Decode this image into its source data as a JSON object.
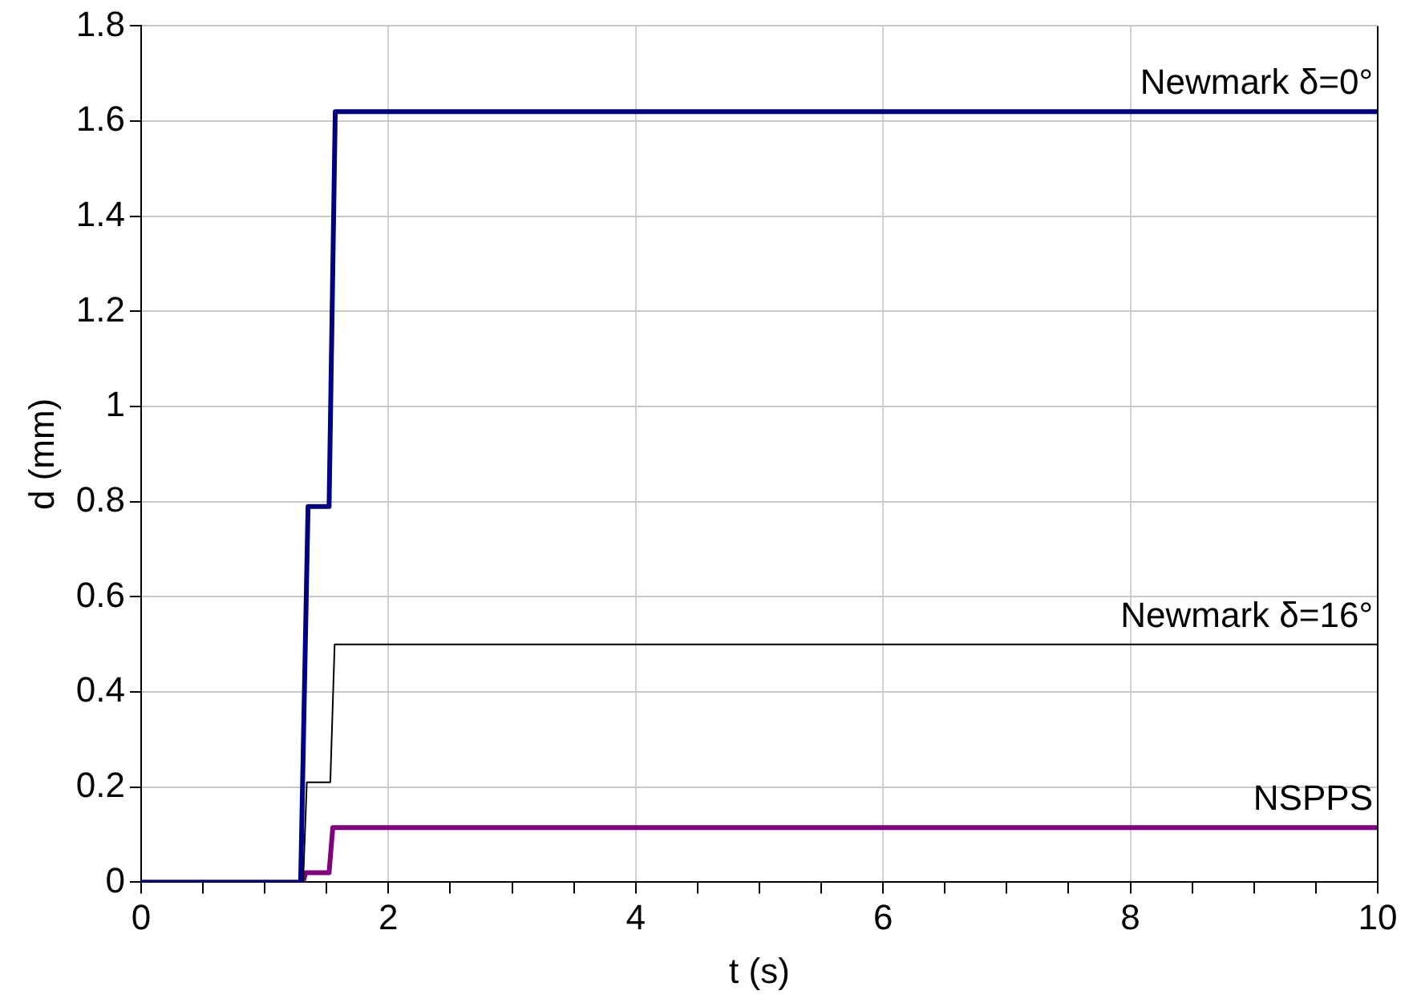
{
  "chart_data": {
    "type": "line",
    "xlabel": "t (s)",
    "ylabel": "d (mm)",
    "xlim": [
      0,
      10
    ],
    "ylim": [
      0,
      1.8
    ],
    "xticks": [
      0,
      {
        "value": 0.5,
        "label": null
      },
      {
        "value": 1,
        "label": null
      },
      {
        "value": 1.5,
        "label": null
      },
      2,
      {
        "value": 2.5,
        "label": null
      },
      {
        "value": 3,
        "label": null
      },
      {
        "value": 3.5,
        "label": null
      },
      4,
      {
        "value": 4.5,
        "label": null
      },
      {
        "value": 5,
        "label": null
      },
      {
        "value": 5.5,
        "label": null
      },
      6,
      {
        "value": 6.5,
        "label": null
      },
      {
        "value": 7,
        "label": null
      },
      {
        "value": 7.5,
        "label": null
      },
      8,
      {
        "value": 8.5,
        "label": null
      },
      {
        "value": 9,
        "label": null
      },
      {
        "value": 9.5,
        "label": null
      },
      10
    ],
    "yticks": [
      0,
      0.2,
      0.4,
      0.6,
      0.8,
      1,
      1.2,
      1.4,
      1.6,
      1.8
    ],
    "grid": true,
    "legend": false,
    "marker": "none",
    "line_style": "solid",
    "series": [
      {
        "name": "Newmark δ=0°",
        "color": "#000080",
        "x": [
          0,
          1.29,
          1.35,
          1.52,
          1.57,
          10
        ],
        "values": [
          0,
          0,
          0.79,
          0.79,
          1.62,
          1.62
        ]
      },
      {
        "name": "Newmark δ=16°",
        "color": "#000000",
        "x": [
          0,
          1.31,
          1.34,
          1.53,
          1.565,
          10
        ],
        "values": [
          0,
          0,
          0.21,
          0.21,
          0.5,
          0.5
        ]
      },
      {
        "name": "NSPPS",
        "color": "#800080",
        "x": [
          0,
          1.31,
          1.33,
          1.52,
          1.55,
          10
        ],
        "values": [
          0,
          0,
          0.02,
          0.02,
          0.115,
          0.115
        ]
      }
    ]
  }
}
